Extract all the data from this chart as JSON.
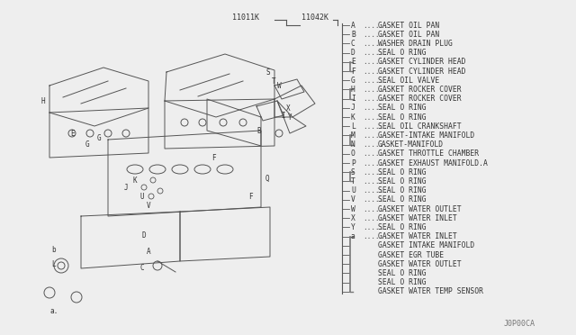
{
  "bg_color": "#eeeeee",
  "part_number_left": "11011K",
  "part_number_right": "11042K",
  "footer": "J0P00CA",
  "parts": [
    {
      "label": "A",
      "desc": "GASKET OIL PAN"
    },
    {
      "label": "B",
      "desc": "GASKET OIL PAN"
    },
    {
      "label": "C",
      "desc": "WASHER DRAIN PLUG"
    },
    {
      "label": "D",
      "desc": "SEAL O RING"
    },
    {
      "label": "E",
      "desc": "GASKET CYLINDER HEAD"
    },
    {
      "label": "F",
      "desc": "GASKET CYLINDER HEAD"
    },
    {
      "label": "G",
      "desc": "SEAL OIL VALVE"
    },
    {
      "label": "H",
      "desc": "GASKET ROCKER COVER"
    },
    {
      "label": "I",
      "desc": "GASKET ROCKER COVER"
    },
    {
      "label": "J",
      "desc": "SEAL O RING"
    },
    {
      "label": "K",
      "desc": "SEAL O RING"
    },
    {
      "label": "L",
      "desc": "SEAL OIL CRANKSHAFT"
    },
    {
      "label": "M",
      "desc": "GASKET-INTAKE MANIFOLD"
    },
    {
      "label": "N",
      "desc": "GASKET-MANIFOLD"
    },
    {
      "label": "O",
      "desc": "GASKET THROTTLE CHAMBER"
    },
    {
      "label": "P",
      "desc": "GASKET EXHAUST MANIFOLD.A"
    },
    {
      "label": "S",
      "desc": "SEAL O RING"
    },
    {
      "label": "T",
      "desc": "SEAL O RING"
    },
    {
      "label": "U",
      "desc": "SEAL O RING"
    },
    {
      "label": "V",
      "desc": "SEAL O RING"
    },
    {
      "label": "W",
      "desc": "GASKET WATER OUTLET"
    },
    {
      "label": "X",
      "desc": "GASKET WATER INLET"
    },
    {
      "label": "Y",
      "desc": "SEAL O RING"
    },
    {
      "label": "a",
      "desc": "GASKET WATER INLET"
    },
    {
      "label": "",
      "desc": "GASKET INTAKE MANIFOLD"
    },
    {
      "label": "",
      "desc": "GASKET EGR TUBE"
    },
    {
      "label": "",
      "desc": "GASKET WATER OUTLET"
    },
    {
      "label": "",
      "desc": "SEAL O RING"
    },
    {
      "label": "",
      "desc": "SEAL O RING"
    },
    {
      "label": "",
      "desc": "GASKET WATER TEMP SENSOR"
    }
  ],
  "bracket_groups": [
    [
      4,
      5
    ],
    [
      7,
      8
    ],
    [
      12,
      13
    ],
    [
      16,
      17
    ],
    [
      23,
      24,
      25,
      26,
      27,
      28,
      29
    ]
  ]
}
